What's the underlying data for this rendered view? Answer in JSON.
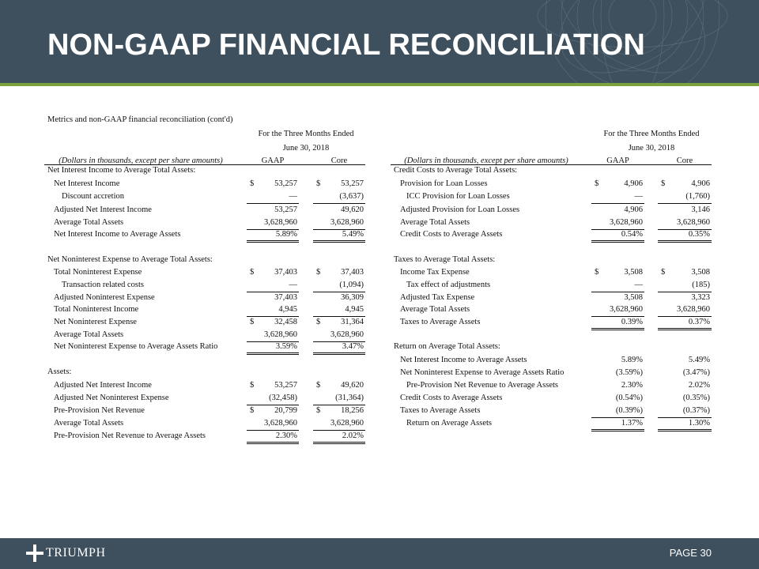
{
  "header": {
    "title": "NON-GAAP FINANCIAL RECONCILIATION"
  },
  "subtitle": "Metrics and non-GAAP financial reconciliation (cont'd)",
  "tables": [
    {
      "period": "For the Three Months Ended",
      "date": "June 30, 2018",
      "caption": "(Dollars in thousands, except per share amounts)",
      "columns": [
        "GAAP",
        "Core"
      ],
      "rows": [
        {
          "label": "Net Interest Income to Average Total Assets:"
        },
        {
          "label": "Net Interest Income",
          "currency": "$",
          "gaap": "53,257",
          "core": "53,257"
        },
        {
          "label": "Discount accretion",
          "gaap": "—",
          "core": "(3,637)"
        },
        {
          "label": "Adjusted Net Interest Income",
          "gaap": "53,257",
          "core": "49,620"
        },
        {
          "label": "Average Total Assets",
          "gaap": "3,628,960",
          "core": "3,628,960"
        },
        {
          "label": "Net Interest Income to Average Assets",
          "gaap": "5.89%",
          "core": "5.49%"
        },
        {
          "label": "Net Noninterest Expense to Average Total Assets:"
        },
        {
          "label": "Total Noninterest Expense",
          "currency": "$",
          "gaap": "37,403",
          "core": "37,403"
        },
        {
          "label": "Transaction related costs",
          "gaap": "—",
          "core": "(1,094)"
        },
        {
          "label": "Adjusted Noninterest Expense",
          "gaap": "37,403",
          "core": "36,309"
        },
        {
          "label": "Total Noninterest Income",
          "gaap": "4,945",
          "core": "4,945"
        },
        {
          "label": "Net Noninterest Expense",
          "currency": "$",
          "gaap": "32,458",
          "core": "31,364"
        },
        {
          "label": "Average Total Assets",
          "gaap": "3,628,960",
          "core": "3,628,960"
        },
        {
          "label": "Net Noninterest Expense to Average Assets Ratio",
          "gaap": "3.59%",
          "core": "3.47%"
        },
        {
          "label": "Assets:"
        },
        {
          "label": "Adjusted Net Interest Income",
          "currency": "$",
          "gaap": "53,257",
          "core": "49,620"
        },
        {
          "label": "Adjusted Net Noninterest Expense",
          "gaap": "(32,458)",
          "core": "(31,364)"
        },
        {
          "label": "Pre-Provision Net Revenue",
          "currency": "$",
          "gaap": "20,799",
          "core": "18,256"
        },
        {
          "label": "Average Total Assets",
          "gaap": "3,628,960",
          "core": "3,628,960"
        },
        {
          "label": "Pre-Provision Net Revenue to Average Assets",
          "gaap": "2.30%",
          "core": "2.02%"
        }
      ]
    },
    {
      "period": "For the Three Months Ended",
      "date": "June 30, 2018",
      "caption": "(Dollars in thousands, except per share amounts)",
      "columns": [
        "GAAP",
        "Core"
      ],
      "rows": [
        {
          "label": "Credit Costs to Average Total Assets:"
        },
        {
          "label": "Provision for Loan Losses",
          "currency": "$",
          "gaap": "4,906",
          "core": "4,906"
        },
        {
          "label": "ICC Provision for Loan Losses",
          "gaap": "—",
          "core": "(1,760)"
        },
        {
          "label": "Adjusted Provision for Loan Losses",
          "gaap": "4,906",
          "core": "3,146"
        },
        {
          "label": "Average Total Assets",
          "gaap": "3,628,960",
          "core": "3,628,960"
        },
        {
          "label": "Credit Costs to Average Assets",
          "gaap": "0.54%",
          "core": "0.35%"
        },
        {
          "label": "Taxes to Average Total Assets:"
        },
        {
          "label": "Income Tax Expense",
          "currency": "$",
          "gaap": "3,508",
          "core": "3,508"
        },
        {
          "label": "Tax effect of adjustments",
          "gaap": "—",
          "core": "(185)"
        },
        {
          "label": "Adjusted Tax Expense",
          "gaap": "3,508",
          "core": "3,323"
        },
        {
          "label": "Average Total Assets",
          "gaap": "3,628,960",
          "core": "3,628,960"
        },
        {
          "label": "Taxes to Average Assets",
          "gaap": "0.39%",
          "core": "0.37%"
        },
        {
          "label": "Return on Average Total Assets:"
        },
        {
          "label": "Net Interest Income to Average Assets",
          "gaap": "5.89%",
          "core": "5.49%"
        },
        {
          "label": "Net Noninterest Expense to Average Assets Ratio",
          "gaap": "(3.59%)",
          "core": "(3.47%)"
        },
        {
          "label": "Pre-Provision Net Revenue to Average Assets",
          "gaap": "2.30%",
          "core": "2.02%"
        },
        {
          "label": "Credit Costs to Average Assets",
          "gaap": "(0.54%)",
          "core": "(0.35%)"
        },
        {
          "label": "Taxes to Average Assets",
          "gaap": "(0.39%)",
          "core": "(0.37%)"
        },
        {
          "label": "Return on Average Assets",
          "gaap": "1.37%",
          "core": "1.30%"
        }
      ]
    }
  ],
  "footer": {
    "brand": "TRIUMPH",
    "page": "PAGE 30"
  }
}
